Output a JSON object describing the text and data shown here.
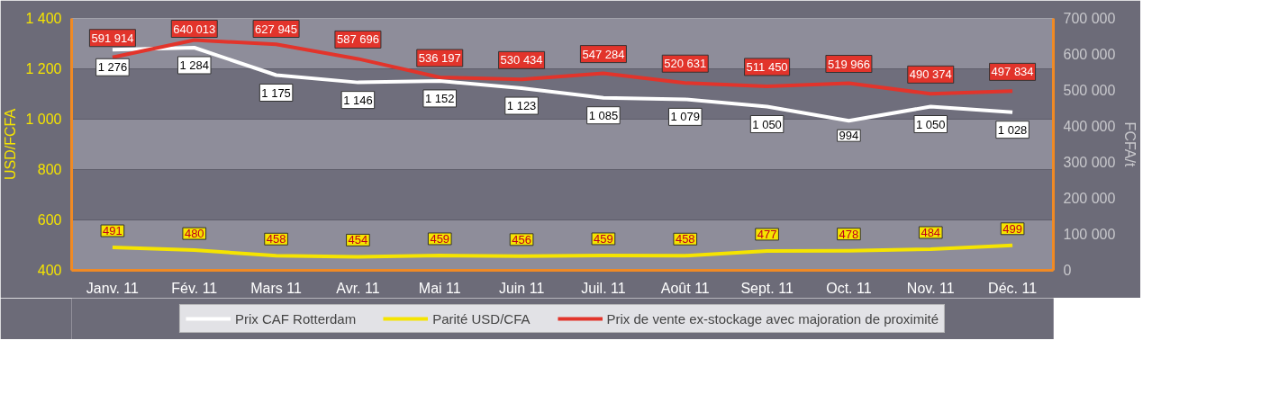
{
  "chart_data": {
    "type": "line",
    "categories": [
      "Janv. 11",
      "Fév. 11",
      "Mars 11",
      "Avr. 11",
      "Mai 11",
      "Juin 11",
      "Juil. 11",
      "Août 11",
      "Sept. 11",
      "Oct. 11",
      "Nov. 11",
      "Déc. 11"
    ],
    "series": [
      {
        "name": "Prix CAF Rotterdam",
        "color": "#ffffff",
        "values": [
          1276,
          1284,
          1175,
          1146,
          1152,
          1123,
          1085,
          1079,
          1050,
          994,
          1050,
          1028
        ]
      },
      {
        "name": "Parité USD/CFA",
        "color": "#f5e400",
        "values": [
          491,
          480,
          458,
          454,
          459,
          456,
          459,
          458,
          477,
          478,
          484,
          499
        ]
      },
      {
        "name": "Prix de vente ex-stockage avec majoration de proximité",
        "color": "#e2342b",
        "axis": "y2",
        "values": [
          591914,
          640013,
          627945,
          587696,
          536197,
          530434,
          547284,
          520631,
          511450,
          519966,
          490374,
          497834
        ]
      }
    ],
    "ylabel": "USD/FCFA",
    "y2label": "FCFA/t",
    "ylim": [
      400,
      1400
    ],
    "yticks": [
      400,
      600,
      800,
      {
        "value": 1000,
        "label": "1 000"
      },
      {
        "value": 1200,
        "label": "1 200"
      },
      {
        "value": 1400,
        "label": "1 400"
      }
    ],
    "y2lim": [
      0,
      700000
    ],
    "y2ticks": [
      0,
      {
        "value": 100000,
        "label": "100 000"
      },
      {
        "value": 200000,
        "label": "200 000"
      },
      {
        "value": 300000,
        "label": "300 000"
      },
      {
        "value": 400000,
        "label": "400 000"
      },
      {
        "value": 500000,
        "label": "500 000"
      },
      {
        "value": 600000,
        "label": "600 000"
      },
      {
        "value": 700000,
        "label": "700 000"
      }
    ],
    "grid": "y",
    "legend": "bottom",
    "marker": "none",
    "line_style": "solid",
    "data_labels": true
  }
}
